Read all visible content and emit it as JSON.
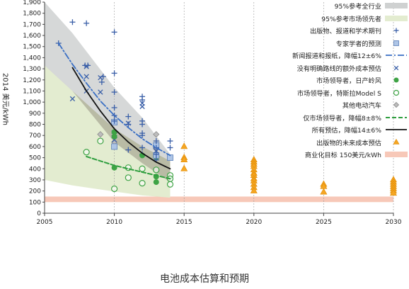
{
  "page": {
    "caption": "电池成本估算和预期"
  },
  "chart_data": {
    "type": "scatter",
    "ylabel": "2014 美元/kWh",
    "xlim": [
      2005,
      2030
    ],
    "ylim": [
      0,
      1900
    ],
    "xticks": [
      2005,
      2010,
      2015,
      2020,
      2025,
      2030
    ],
    "yticks": [
      0,
      100,
      200,
      300,
      400,
      500,
      600,
      700,
      800,
      900,
      1000,
      1100,
      1200,
      1300,
      1400,
      1500,
      1600,
      1700,
      1800,
      1900
    ],
    "ytick_labels": [
      "0",
      "100",
      "200",
      "300",
      "400",
      "500",
      "600",
      "700",
      "800",
      "900",
      "1,000",
      "1,100",
      "1,200",
      "1,300",
      "1,400",
      "1,500",
      "1,600",
      "1,700",
      "1,800",
      "1,900"
    ],
    "colors": {
      "band95_all": "#cfd1d1",
      "band95_leaders": "#e3ecd0",
      "band_overlap": "#b9bba5",
      "plus": "#3a5fa8",
      "square": "#aec5e6",
      "x": "#3a5fa8",
      "dot": "#3ea345",
      "open_circle": "#3ea345",
      "diamond": "#888888",
      "triangle": "#f5a623",
      "trend_news": "#3a6fc4",
      "trend_leaders": "#2e9e3e",
      "trend_all": "#111111",
      "target": "#f7c8b8"
    },
    "bands": {
      "all_industry_95": {
        "x": [
          2005,
          2007,
          2010,
          2012,
          2014
        ],
        "upper": [
          1900,
          1620,
          1130,
          860,
          530
        ],
        "lower": [
          1330,
          1100,
          640,
          450,
          280
        ]
      },
      "market_leaders_95": {
        "x": [
          2005,
          2007,
          2010,
          2012,
          2014
        ],
        "upper": [
          1330,
          1100,
          760,
          600,
          470
        ],
        "lower": [
          300,
          250,
          195,
          160,
          140
        ]
      }
    },
    "target_band": {
      "low": 100,
      "high": 150
    },
    "series": [
      {
        "name": "出版物、报道和学术期刊",
        "marker": "plus",
        "points": [
          [
            2006,
            1530
          ],
          [
            2007,
            1720
          ],
          [
            2008,
            1710
          ],
          [
            2010,
            1630
          ],
          [
            2007.9,
            1330
          ],
          [
            2008.1,
            1330
          ],
          [
            2009.2,
            1230
          ],
          [
            2009.1,
            1180
          ],
          [
            2010,
            1260
          ],
          [
            2010,
            1090
          ],
          [
            2010,
            950
          ],
          [
            2010,
            880
          ],
          [
            2010,
            830
          ],
          [
            2010,
            740
          ],
          [
            2010,
            720
          ],
          [
            2010,
            700
          ],
          [
            2010,
            680
          ],
          [
            2011,
            870
          ],
          [
            2011,
            800
          ],
          [
            2011,
            570
          ],
          [
            2012,
            1050
          ],
          [
            2012,
            1020
          ],
          [
            2012,
            830
          ],
          [
            2012,
            800
          ],
          [
            2012,
            720
          ],
          [
            2012,
            700
          ],
          [
            2012,
            590
          ],
          [
            2012,
            530
          ],
          [
            2013,
            650
          ],
          [
            2013,
            590
          ],
          [
            2013,
            530
          ],
          [
            2013,
            480
          ],
          [
            2014,
            650
          ],
          [
            2014,
            590
          ]
        ]
      },
      {
        "name": "专家学者的预测",
        "marker": "square",
        "points": [
          [
            2010,
            820
          ],
          [
            2010,
            600
          ],
          [
            2013,
            610
          ],
          [
            2013,
            520
          ],
          [
            2014,
            500
          ]
        ]
      },
      {
        "name": "没有明确路线的额外成本预估",
        "marker": "x",
        "points": [
          [
            2007,
            1030
          ],
          [
            2008,
            1100
          ],
          [
            2008,
            1230
          ],
          [
            2008,
            1320
          ],
          [
            2009,
            1220
          ],
          [
            2009,
            1090
          ],
          [
            2010,
            660
          ],
          [
            2011,
            810
          ],
          [
            2012,
            990
          ],
          [
            2012,
            960
          ],
          [
            2013,
            560
          ]
        ]
      },
      {
        "name": "市场领导者，日产岭风",
        "marker": "dot",
        "points": [
          [
            2010,
            730
          ],
          [
            2010,
            690
          ],
          [
            2010,
            410
          ],
          [
            2012,
            520
          ],
          [
            2013,
            330
          ],
          [
            2013,
            280
          ]
        ]
      },
      {
        "name": "市场领导者，特斯拉Model S",
        "marker": "open_circle",
        "points": [
          [
            2008,
            550
          ],
          [
            2009,
            650
          ],
          [
            2010,
            220
          ],
          [
            2011,
            410
          ],
          [
            2011,
            320
          ],
          [
            2012,
            400
          ],
          [
            2012,
            270
          ],
          [
            2013,
            510
          ],
          [
            2013,
            390
          ],
          [
            2014,
            340
          ],
          [
            2014,
            310
          ],
          [
            2014,
            260
          ]
        ]
      },
      {
        "name": "其他电动汽车",
        "marker": "diamond",
        "points": [
          [
            2009,
            710
          ],
          [
            2010,
            640
          ],
          [
            2013,
            710
          ],
          [
            2013,
            580
          ]
        ]
      },
      {
        "name": "出版物的未来成本预估",
        "marker": "triangle",
        "points": [
          [
            2015,
            600
          ],
          [
            2015,
            500
          ],
          [
            2015,
            480
          ],
          [
            2015,
            400
          ],
          [
            2020,
            480
          ],
          [
            2020,
            460
          ],
          [
            2020,
            440
          ],
          [
            2020,
            420
          ],
          [
            2020,
            390
          ],
          [
            2020,
            360
          ],
          [
            2020,
            340
          ],
          [
            2020,
            310
          ],
          [
            2020,
            290
          ],
          [
            2020,
            260
          ],
          [
            2020,
            230
          ],
          [
            2020,
            200
          ],
          [
            2025,
            260
          ],
          [
            2025,
            240
          ],
          [
            2025,
            190
          ],
          [
            2030,
            300
          ],
          [
            2030,
            280
          ],
          [
            2030,
            260
          ],
          [
            2030,
            240
          ],
          [
            2030,
            220
          ],
          [
            2030,
            200
          ],
          [
            2030,
            180
          ]
        ]
      }
    ],
    "trends": [
      {
        "name": "新闻报道和报纸，降幅12±6%",
        "style": "dashdot",
        "x": [
          2006,
          2007,
          2008,
          2009,
          2010,
          2011,
          2012,
          2013,
          2014
        ],
        "y": [
          1530,
          1340,
          1170,
          1010,
          880,
          770,
          670,
          590,
          520
        ]
      },
      {
        "name": "所有预估，降幅14±6%",
        "style": "solid",
        "x": [
          2007,
          2008,
          2009,
          2010,
          2011,
          2012,
          2013,
          2014
        ],
        "y": [
          1310,
          1100,
          920,
          760,
          640,
          540,
          460,
          400
        ]
      },
      {
        "name": "仅市场领导者，降幅8±8%",
        "style": "dashed",
        "x": [
          2008,
          2009,
          2010,
          2011,
          2012,
          2013,
          2014
        ],
        "y": [
          510,
          470,
          430,
          400,
          370,
          340,
          310
        ]
      }
    ],
    "legend": {
      "placement": "top-right",
      "entries": [
        {
          "label": "95%参考全行业",
          "symbol": "swatch-gray"
        },
        {
          "label": "95%参考市场领先者",
          "symbol": "swatch-green"
        },
        {
          "label": "出版物、报道和学术期刊",
          "symbol": "plus"
        },
        {
          "label": "专家学者的预测",
          "symbol": "square"
        },
        {
          "label": "新闻报道和报纸，降幅12±6%",
          "symbol": "dashdot"
        },
        {
          "label": "没有明确路线的额外成本预估",
          "symbol": "x"
        },
        {
          "label": "市场领导者，日产岭风",
          "symbol": "dot"
        },
        {
          "label": "市场领导者，特斯拉Model S",
          "symbol": "open_circle"
        },
        {
          "label": "其他电动汽车",
          "symbol": "diamond"
        },
        {
          "label": "仅市场领导者，降幅8±8%",
          "symbol": "dashed"
        },
        {
          "label": "所有预估，降幅14±6%",
          "symbol": "solid"
        },
        {
          "label": "出版物的未来成本预估",
          "symbol": "triangle"
        },
        {
          "label": "商业化目标 150美元/kWh",
          "symbol": "swatch-target"
        }
      ]
    }
  }
}
